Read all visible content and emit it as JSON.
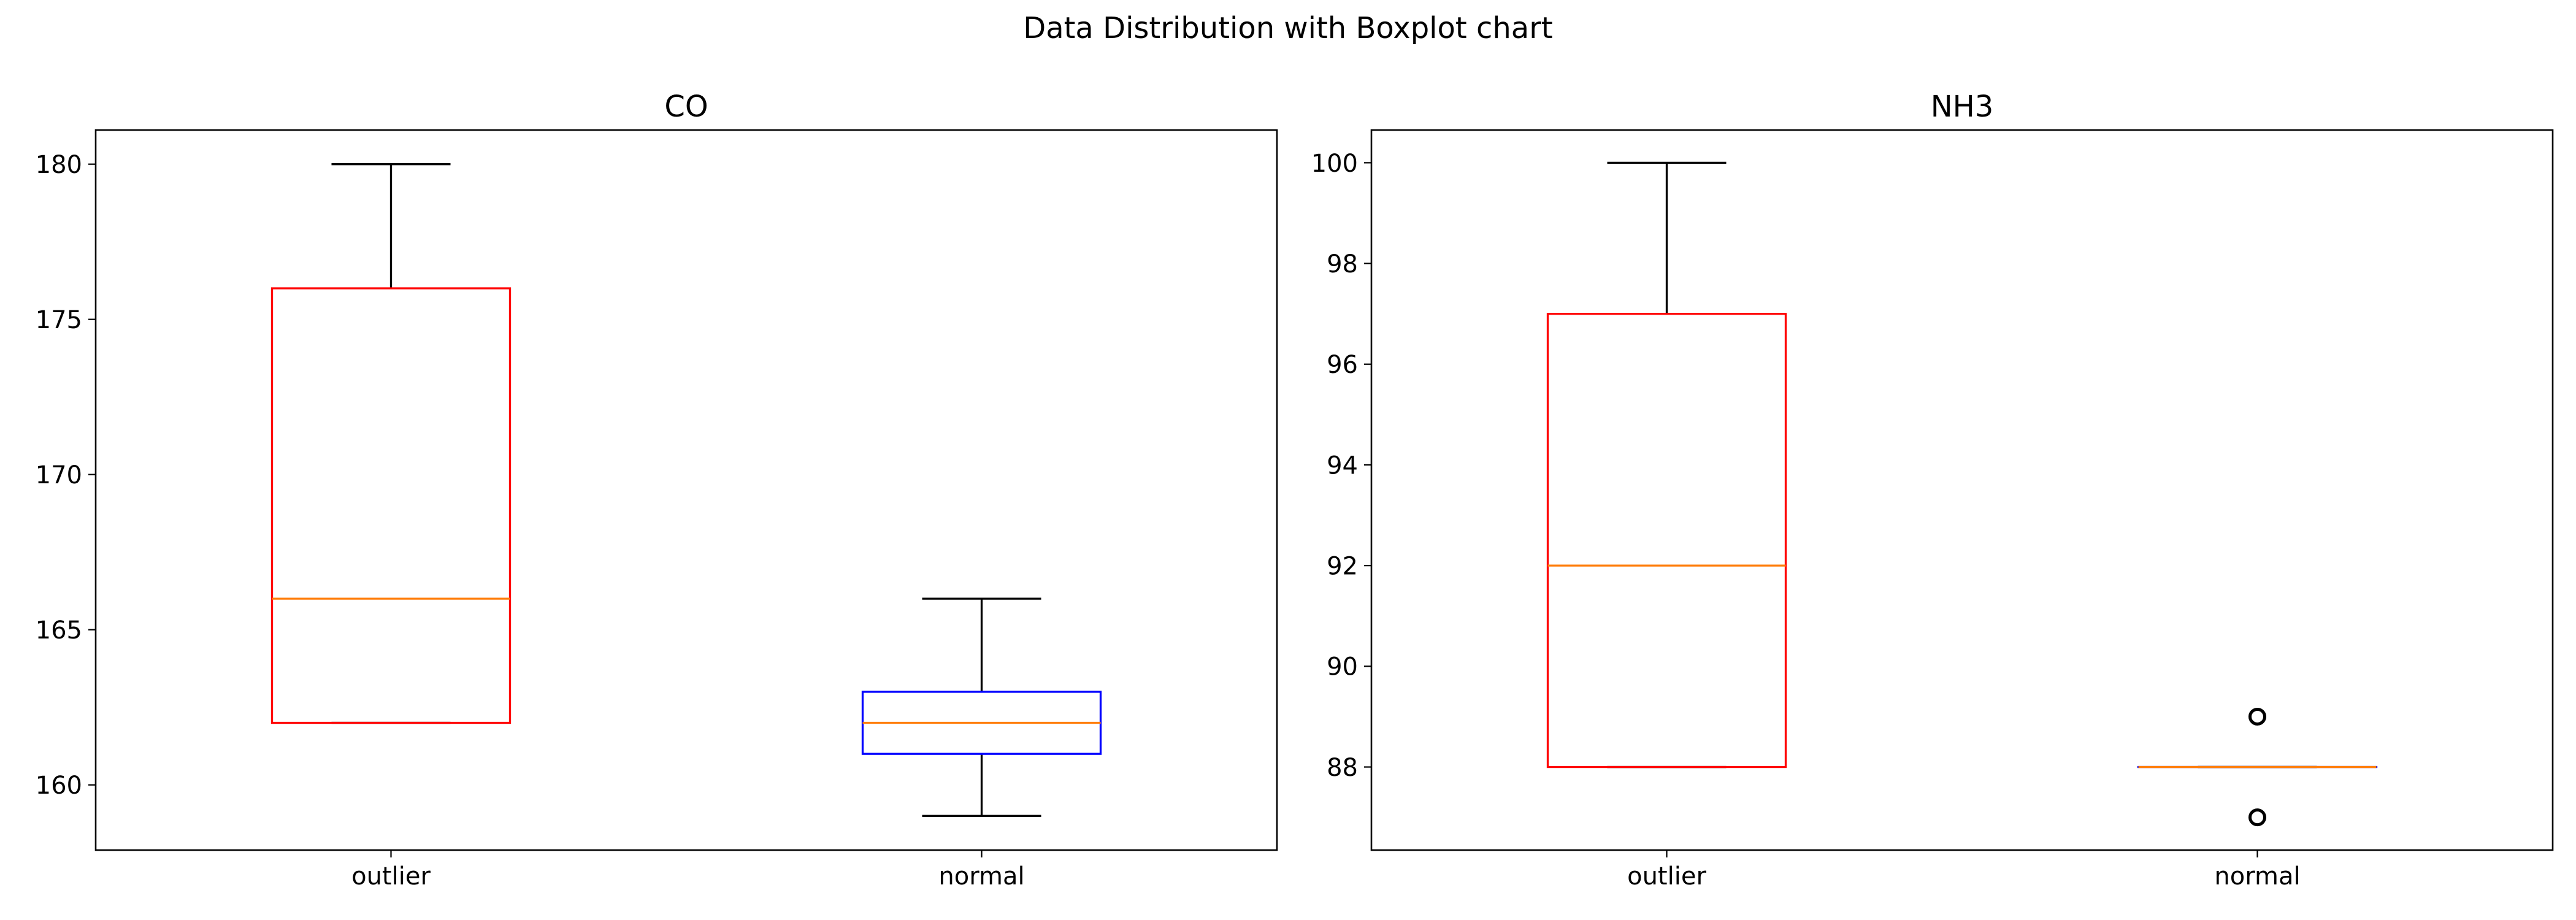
{
  "suptitle": "Data Distribution with Boxplot chart",
  "colors": {
    "outlier_box": "#ff0000",
    "normal_box": "#0000ff",
    "median": "#ff7f0e",
    "whisker": "#000000",
    "flier": "#000000"
  },
  "chart_data": [
    {
      "type": "boxplot",
      "title": "CO",
      "categories": [
        "outlier",
        "normal"
      ],
      "ylim": [
        157.9,
        181.1
      ],
      "yticks": [
        160,
        165,
        170,
        175,
        180
      ],
      "boxes": [
        {
          "category": "outlier",
          "whisker_low": 162,
          "q1": 162,
          "median": 166,
          "q3": 176,
          "whisker_high": 180,
          "fliers": [],
          "color": "#ff0000"
        },
        {
          "category": "normal",
          "whisker_low": 159,
          "q1": 161,
          "median": 162,
          "q3": 163,
          "whisker_high": 166,
          "fliers": [],
          "color": "#0000ff"
        }
      ]
    },
    {
      "type": "boxplot",
      "title": "NH3",
      "categories": [
        "outlier",
        "normal"
      ],
      "ylim": [
        86.35,
        100.65
      ],
      "yticks": [
        88,
        90,
        92,
        94,
        96,
        98,
        100
      ],
      "boxes": [
        {
          "category": "outlier",
          "whisker_low": 88,
          "q1": 88,
          "median": 92,
          "q3": 97,
          "whisker_high": 100,
          "fliers": [],
          "color": "#ff0000"
        },
        {
          "category": "normal",
          "whisker_low": 88,
          "q1": 88,
          "median": 88,
          "q3": 88,
          "whisker_high": 88,
          "fliers": [
            87,
            89
          ],
          "color": "#0000ff"
        }
      ]
    }
  ]
}
